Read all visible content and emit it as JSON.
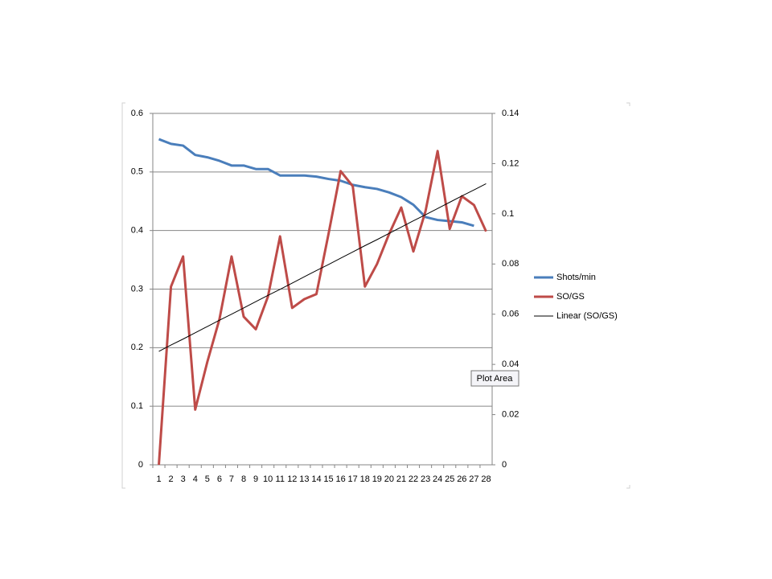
{
  "chart_data": {
    "type": "line",
    "categories": [
      1,
      2,
      3,
      4,
      5,
      6,
      7,
      8,
      9,
      10,
      11,
      12,
      13,
      14,
      15,
      16,
      17,
      18,
      19,
      20,
      21,
      22,
      23,
      24,
      25,
      26,
      27,
      28
    ],
    "series": [
      {
        "name": "Shots/min",
        "color": "#4a7ebb",
        "axis": "y",
        "values": [
          0.556,
          0.548,
          0.545,
          0.529,
          0.525,
          0.519,
          0.511,
          0.511,
          0.505,
          0.505,
          0.494,
          0.494,
          0.494,
          0.492,
          0.488,
          0.485,
          0.478,
          0.474,
          0.471,
          0.465,
          0.457,
          0.444,
          0.423,
          0.418,
          0.416,
          0.414,
          0.408,
          null
        ]
      },
      {
        "name": "SO/GS",
        "color": "#be4b48",
        "axis": "y2",
        "values": [
          0,
          0.071,
          0.083,
          0.022,
          0.041,
          0.058,
          0.083,
          0.059,
          0.054,
          0.067,
          0.091,
          0.0625,
          0.066,
          0.068,
          0.092,
          0.117,
          0.111,
          0.071,
          0.08,
          0.092,
          0.1025,
          0.085,
          0.101,
          0.125,
          0.094,
          0.107,
          0.1035,
          0.093
        ]
      },
      {
        "name": "Linear (SO/GS)",
        "color": "#000000",
        "axis": "y2",
        "values": [
          0.0452,
          0.0477,
          0.0501,
          0.0526,
          0.0551,
          0.0576,
          0.06,
          0.0625,
          0.065,
          0.0675,
          0.0699,
          0.0724,
          0.0749,
          0.0774,
          0.0798,
          0.0823,
          0.0848,
          0.0873,
          0.0897,
          0.0922,
          0.0947,
          0.0972,
          0.0996,
          0.1021,
          0.1046,
          0.1071,
          0.1095,
          0.112
        ]
      }
    ],
    "ylim": [
      0,
      0.6
    ],
    "yticks": [
      0,
      0.1,
      0.2,
      0.3,
      0.4,
      0.5,
      0.6
    ],
    "y2lim": [
      0,
      0.14
    ],
    "y2ticks": [
      0,
      0.02,
      0.04,
      0.06,
      0.08,
      0.1,
      0.12,
      0.14
    ],
    "grid": true,
    "legend": "right",
    "tooltip": "Plot Area"
  }
}
